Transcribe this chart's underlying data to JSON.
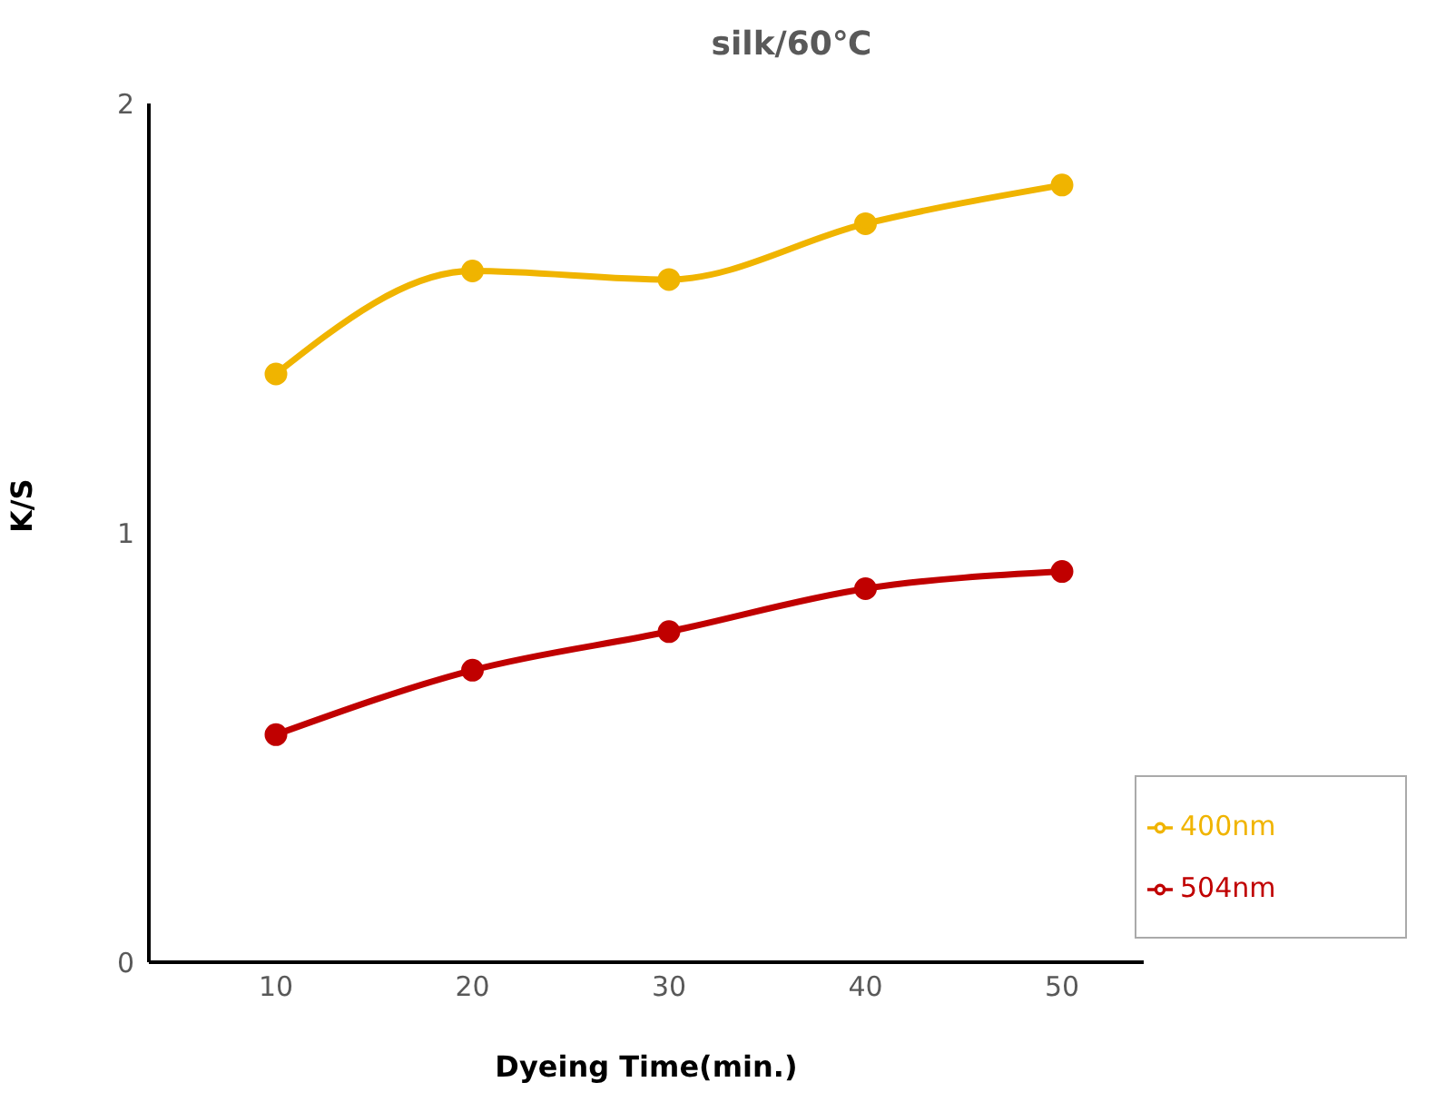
{
  "chart_data": {
    "type": "line",
    "title": "silk/60℃",
    "xlabel": "Dyeing Time(min.)",
    "ylabel": "K/S",
    "categories": [
      "10",
      "20",
      "30",
      "40",
      "50"
    ],
    "series": [
      {
        "name": "400nm",
        "color": "#f0b400",
        "values": [
          1.37,
          1.61,
          1.59,
          1.72,
          1.81
        ]
      },
      {
        "name": "504nm",
        "color": "#c00000",
        "values": [
          0.53,
          0.68,
          0.77,
          0.87,
          0.91
        ]
      }
    ],
    "ylim": [
      0,
      2
    ],
    "yticks": [
      0,
      1,
      2
    ],
    "grid": false,
    "legend": "bottom right",
    "marker": "circle",
    "line_style": "solid"
  }
}
